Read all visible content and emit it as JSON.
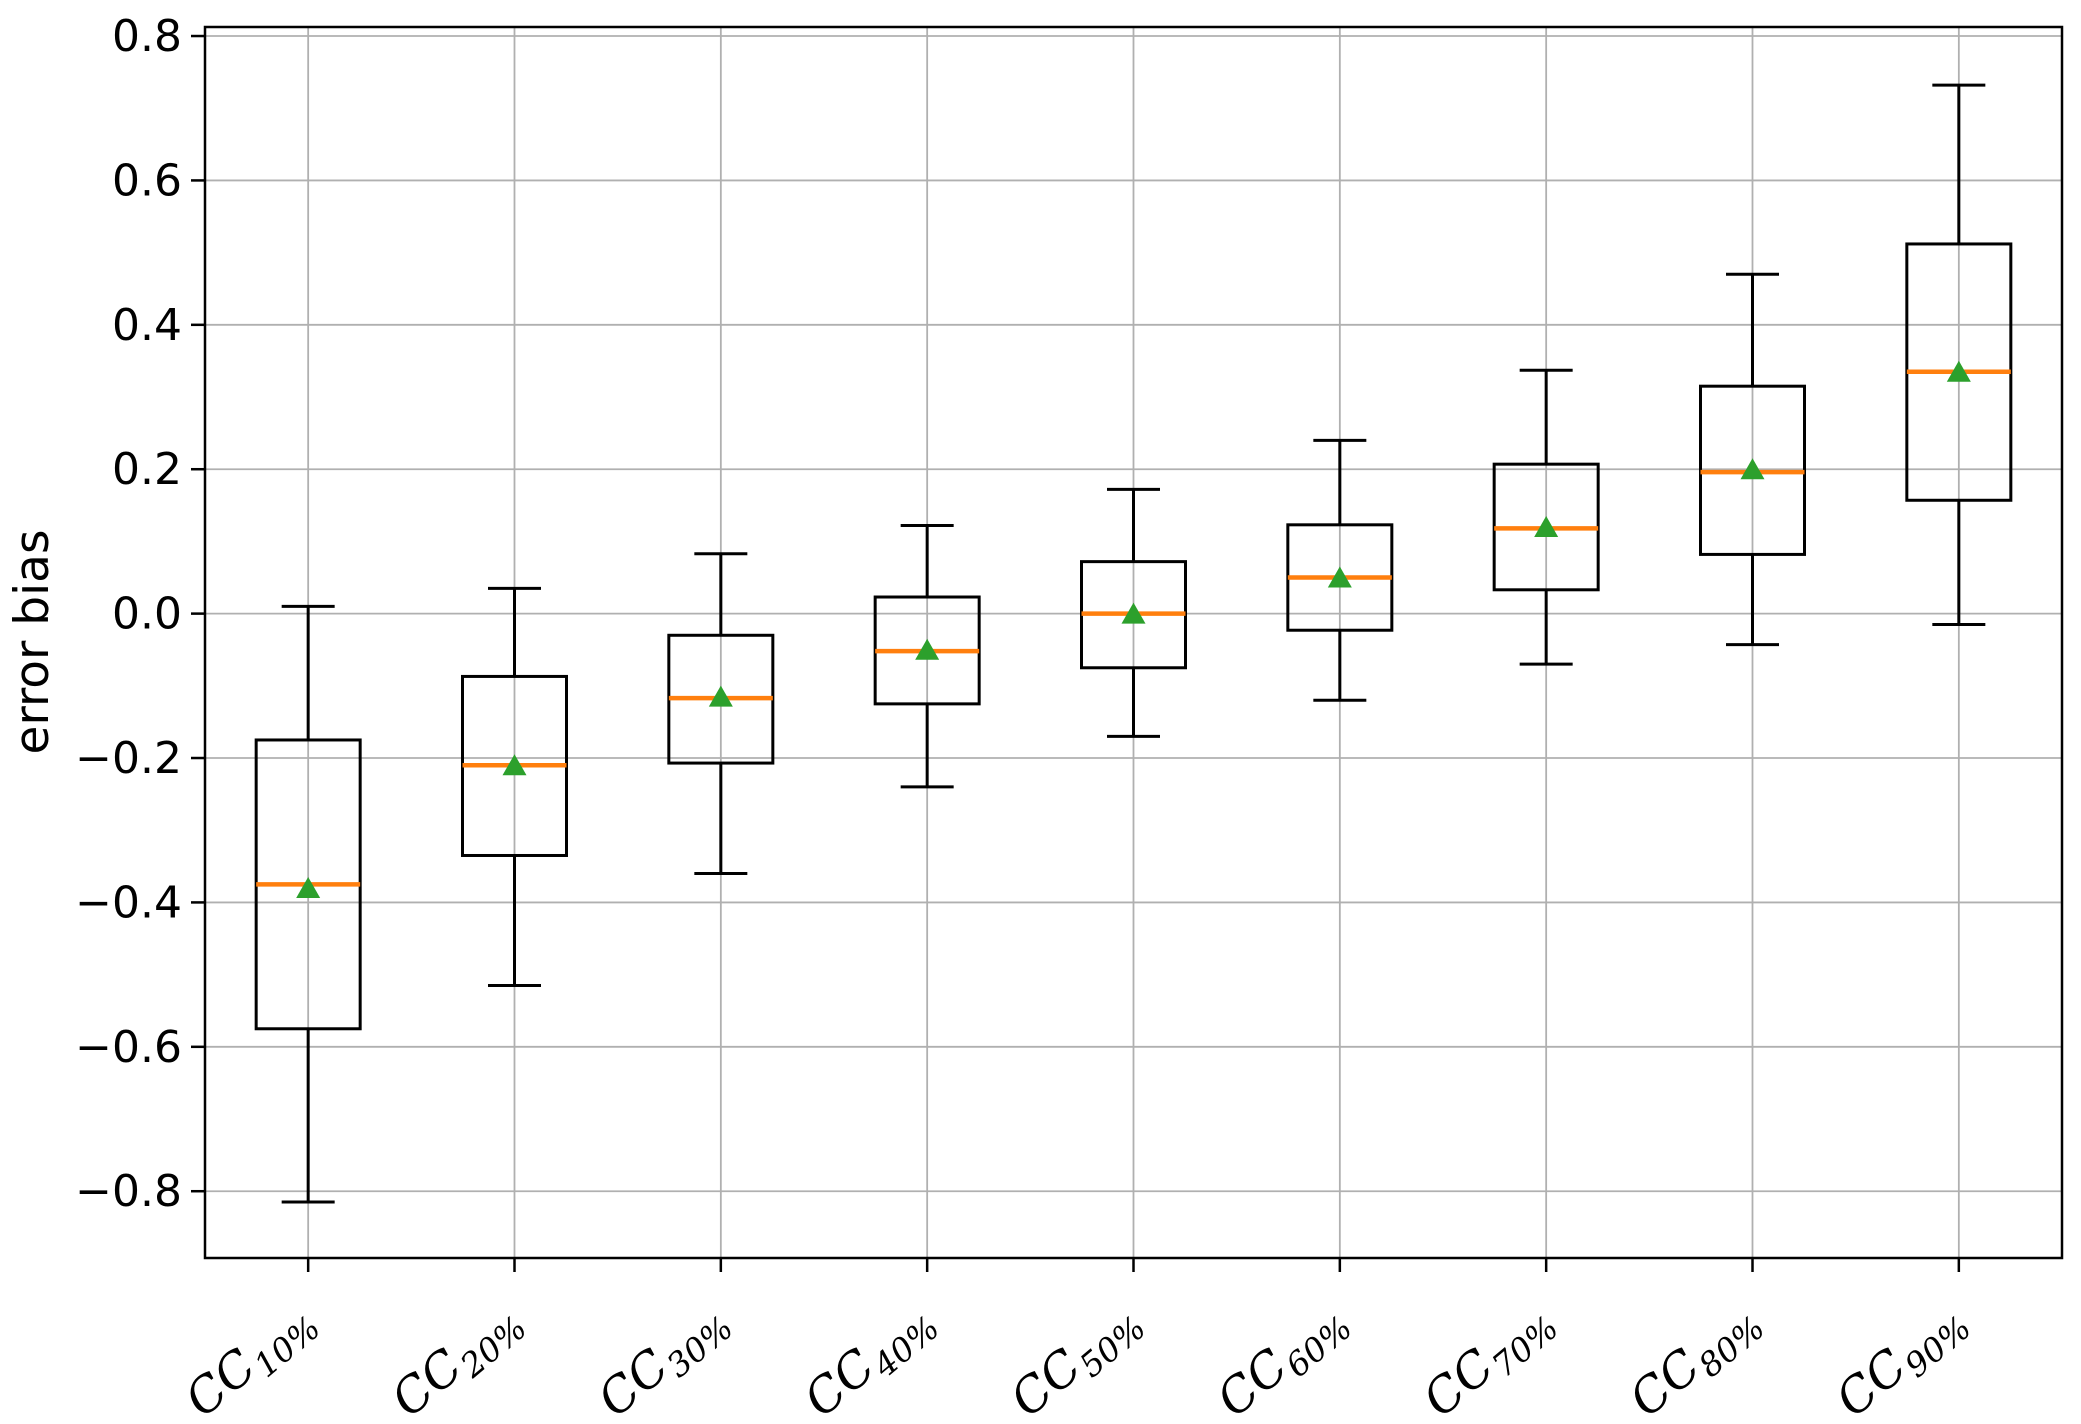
{
  "chart_data": {
    "type": "boxplot",
    "title": "",
    "xlabel": "",
    "ylabel": "error bias",
    "grid": true,
    "legend": false,
    "ylim": [
      -0.8925,
      0.8125
    ],
    "yticks": [
      {
        "value": 0.8,
        "label": "0.8"
      },
      {
        "value": 0.6,
        "label": "0.6"
      },
      {
        "value": 0.4,
        "label": "0.4"
      },
      {
        "value": 0.2,
        "label": "0.2"
      },
      {
        "value": 0.0,
        "label": "0.0"
      },
      {
        "value": -0.2,
        "label": "−0.2"
      },
      {
        "value": -0.4,
        "label": "−0.4"
      },
      {
        "value": -0.6,
        "label": "−0.6"
      },
      {
        "value": -0.8,
        "label": "−0.8"
      }
    ],
    "categories": [
      {
        "base": "CC",
        "sub": "10%"
      },
      {
        "base": "CC",
        "sub": "20%"
      },
      {
        "base": "CC",
        "sub": "30%"
      },
      {
        "base": "CC",
        "sub": "40%"
      },
      {
        "base": "CC",
        "sub": "50%"
      },
      {
        "base": "CC",
        "sub": "60%"
      },
      {
        "base": "CC",
        "sub": "70%"
      },
      {
        "base": "CC",
        "sub": "80%"
      },
      {
        "base": "CC",
        "sub": "90%"
      }
    ],
    "boxes": [
      {
        "category": "CC10%",
        "whislo": -0.815,
        "q1": -0.575,
        "med": -0.375,
        "mean": -0.38,
        "q3": -0.175,
        "whishi": 0.01
      },
      {
        "category": "CC20%",
        "whislo": -0.515,
        "q1": -0.335,
        "med": -0.21,
        "mean": -0.21,
        "q3": -0.087,
        "whishi": 0.035
      },
      {
        "category": "CC30%",
        "whislo": -0.36,
        "q1": -0.207,
        "med": -0.117,
        "mean": -0.115,
        "q3": -0.03,
        "whishi": 0.083
      },
      {
        "category": "CC40%",
        "whislo": -0.24,
        "q1": -0.125,
        "med": -0.052,
        "mean": -0.05,
        "q3": 0.023,
        "whishi": 0.122
      },
      {
        "category": "CC50%",
        "whislo": -0.17,
        "q1": -0.075,
        "med": 0.0,
        "mean": 0.0,
        "q3": 0.072,
        "whishi": 0.172
      },
      {
        "category": "CC60%",
        "whislo": -0.12,
        "q1": -0.023,
        "med": 0.05,
        "mean": 0.05,
        "q3": 0.123,
        "whishi": 0.24
      },
      {
        "category": "CC70%",
        "whislo": -0.07,
        "q1": 0.033,
        "med": 0.118,
        "mean": 0.12,
        "q3": 0.207,
        "whishi": 0.337
      },
      {
        "category": "CC80%",
        "whislo": -0.043,
        "q1": 0.082,
        "med": 0.196,
        "mean": 0.2,
        "q3": 0.315,
        "whishi": 0.47
      },
      {
        "category": "CC90%",
        "whislo": -0.015,
        "q1": 0.157,
        "med": 0.335,
        "mean": 0.335,
        "q3": 0.512,
        "whishi": 0.732
      }
    ],
    "colors": {
      "median": "#ff7f0e",
      "mean_marker": "#2ca02c",
      "box_edge": "#000000",
      "whisker": "#000000",
      "grid": "#b0b0b0",
      "spine": "#000000",
      "background": "#ffffff"
    }
  }
}
